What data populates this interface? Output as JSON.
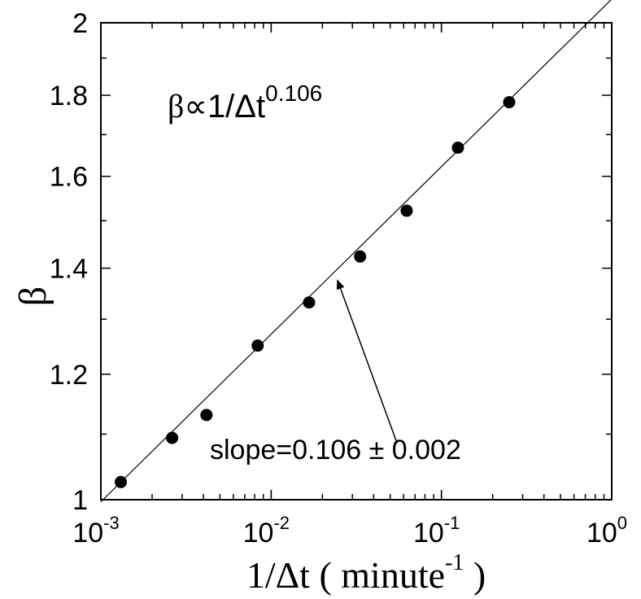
{
  "chart_data": {
    "type": "scatter",
    "title": "",
    "xlabel": "1/Δt ( minute",
    "xlabel_sup": "-1",
    "xlabel_close": " )",
    "ylabel": "β",
    "xscale": "log",
    "yscale": "log",
    "xlim": [
      0.001,
      1
    ],
    "ylim": [
      1,
      2
    ],
    "grid": false,
    "legend": "none",
    "x_ticks": [
      {
        "value": 0.001,
        "base": "10",
        "exp": "-3"
      },
      {
        "value": 0.01,
        "base": "10",
        "exp": "-2"
      },
      {
        "value": 0.1,
        "base": "10",
        "exp": "-1"
      },
      {
        "value": 1,
        "base": "10",
        "exp": "0"
      }
    ],
    "y_ticks": [
      {
        "value": 1,
        "label": "1"
      },
      {
        "value": 1.2,
        "label": "1.2"
      },
      {
        "value": 1.4,
        "label": "1.4"
      },
      {
        "value": 1.6,
        "label": "1.6"
      },
      {
        "value": 1.8,
        "label": "1.8"
      },
      {
        "value": 2,
        "label": "2"
      }
    ],
    "series": [
      {
        "x": [
          0.00131,
          0.00262,
          0.00417,
          0.00833,
          0.0167,
          0.0333,
          0.0625,
          0.125,
          0.25
        ],
        "y": [
          1.026,
          1.094,
          1.131,
          1.251,
          1.332,
          1.424,
          1.522,
          1.668,
          1.782
        ],
        "color": "#000000"
      }
    ],
    "fit_line": {
      "slope": 0.106,
      "x_range": [
        0.001,
        1
      ],
      "y_range": [
        0.997,
        2.07
      ],
      "color": "#000000"
    },
    "annotations": {
      "formula": {
        "prefix": "β∝",
        "body": "1/Δt",
        "exponent": "0.106"
      },
      "slope_text": "slope=0.106 ± 0.002",
      "arrow": {
        "from": [
          0.055,
          1.085
        ],
        "to": [
          0.0245,
          1.376
        ]
      }
    }
  }
}
